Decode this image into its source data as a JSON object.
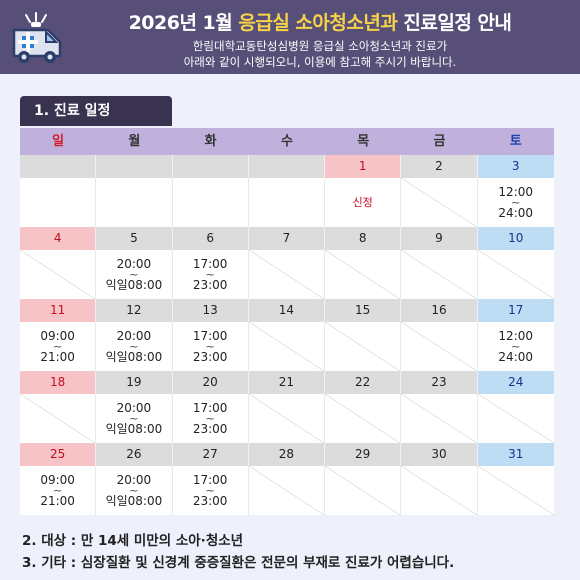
{
  "header": {
    "title_pre": "2026년 1월 ",
    "title_highlight": "응급실 소아청소년과",
    "title_post": " 진료일정 안내",
    "desc_line1": "한림대학교동탄성심병원 응급실 소아청소년과 진료가",
    "desc_line2": "아래와 같이 시행되오니, 이용에 참고해 주시기 바랍니다.",
    "icon": "ambulance-icon"
  },
  "section_title": "1. 진료 일정",
  "weekdays": [
    "일",
    "월",
    "화",
    "수",
    "목",
    "금",
    "토"
  ],
  "colors": {
    "header_bg": "#584f78",
    "highlight": "#f7d34a",
    "sunday": "#c20e20",
    "saturday": "#12358e"
  },
  "weeks": [
    {
      "dates": [
        "",
        "",
        "",
        "",
        "1",
        "2",
        "3"
      ],
      "cells": [
        {
          "type": "blank"
        },
        {
          "type": "blank"
        },
        {
          "type": "blank"
        },
        {
          "type": "blank"
        },
        {
          "type": "note",
          "text": "신정"
        },
        {
          "type": "slash"
        },
        {
          "type": "time",
          "start": "12:00",
          "tilde": "~",
          "end": "24:00"
        }
      ]
    },
    {
      "dates": [
        "4",
        "5",
        "6",
        "7",
        "8",
        "9",
        "10"
      ],
      "cells": [
        {
          "type": "slash"
        },
        {
          "type": "time",
          "start": "20:00",
          "tilde": "~",
          "end": "익일08:00"
        },
        {
          "type": "time",
          "start": "17:00",
          "tilde": "~",
          "end": "23:00"
        },
        {
          "type": "slash"
        },
        {
          "type": "slash"
        },
        {
          "type": "slash"
        },
        {
          "type": "slash"
        }
      ]
    },
    {
      "dates": [
        "11",
        "12",
        "13",
        "14",
        "15",
        "16",
        "17"
      ],
      "cells": [
        {
          "type": "time",
          "start": "09:00",
          "tilde": "~",
          "end": "21:00"
        },
        {
          "type": "time",
          "start": "20:00",
          "tilde": "~",
          "end": "익일08:00"
        },
        {
          "type": "time",
          "start": "17:00",
          "tilde": "~",
          "end": "23:00"
        },
        {
          "type": "slash"
        },
        {
          "type": "slash"
        },
        {
          "type": "slash"
        },
        {
          "type": "time",
          "start": "12:00",
          "tilde": "~",
          "end": "24:00"
        }
      ]
    },
    {
      "dates": [
        "18",
        "19",
        "20",
        "21",
        "22",
        "23",
        "24"
      ],
      "cells": [
        {
          "type": "slash"
        },
        {
          "type": "time",
          "start": "20:00",
          "tilde": "~",
          "end": "익일08:00"
        },
        {
          "type": "time",
          "start": "17:00",
          "tilde": "~",
          "end": "23:00"
        },
        {
          "type": "slash"
        },
        {
          "type": "slash"
        },
        {
          "type": "slash"
        },
        {
          "type": "slash"
        }
      ]
    },
    {
      "dates": [
        "25",
        "26",
        "27",
        "28",
        "29",
        "30",
        "31"
      ],
      "cells": [
        {
          "type": "time",
          "start": "09:00",
          "tilde": "~",
          "end": "21:00"
        },
        {
          "type": "time",
          "start": "20:00",
          "tilde": "~",
          "end": "익일08:00"
        },
        {
          "type": "time",
          "start": "17:00",
          "tilde": "~",
          "end": "23:00"
        },
        {
          "type": "slash"
        },
        {
          "type": "slash"
        },
        {
          "type": "slash"
        },
        {
          "type": "slash"
        }
      ]
    }
  ],
  "footer": {
    "line1": "2. 대상 : 만 14세 미만의 소아·청소년",
    "line2": "3. 기타 : 심장질환 및 신경계 중증질환은 전문의 부재로 진료가 어렵습니다."
  }
}
